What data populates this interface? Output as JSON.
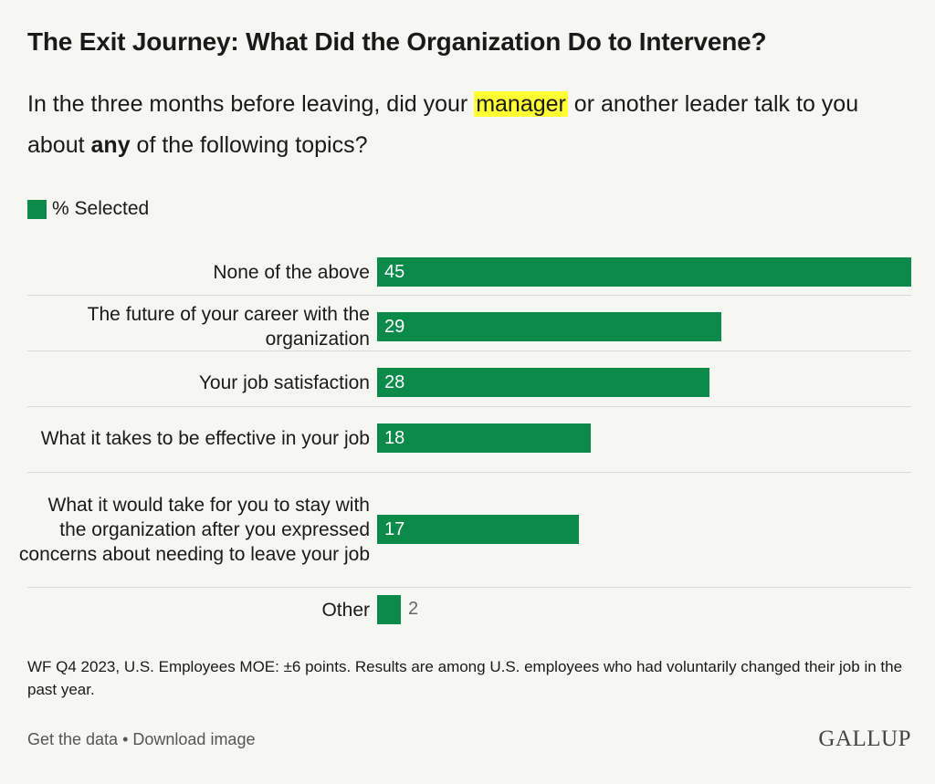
{
  "header": {
    "title": "The Exit Journey: What Did the Organization Do to Intervene?",
    "subtitle_part1": "In the three months before leaving, did your ",
    "subtitle_highlight": "manager",
    "subtitle_part2": " or another leader talk to you about ",
    "subtitle_bold": "any",
    "subtitle_part3": " of the following topics?"
  },
  "colors": {
    "bar": "#0b8a4a",
    "highlight": "#ffff33"
  },
  "chart_data": {
    "type": "bar",
    "orientation": "horizontal",
    "categories": [
      "None of the above",
      "The future of your career with the organization",
      "Your job satisfaction",
      "What it takes to be effective in your job",
      "What it would take for you to stay with the organization after you expressed concerns about needing to leave your job",
      "Other"
    ],
    "series": [
      {
        "name": "% Selected",
        "values": [
          45,
          29,
          28,
          18,
          17,
          2
        ]
      }
    ],
    "xlim": [
      0,
      45
    ],
    "legend": "top-left",
    "grid": false
  },
  "note": "WF Q4 2023, U.S. Employees MOE: ±6 points. Results are among U.S. employees who had voluntarily changed their job in the past year.",
  "footer": {
    "get_data": "Get the data",
    "separator": " • ",
    "download": "Download image",
    "logo": "GALLUP"
  }
}
